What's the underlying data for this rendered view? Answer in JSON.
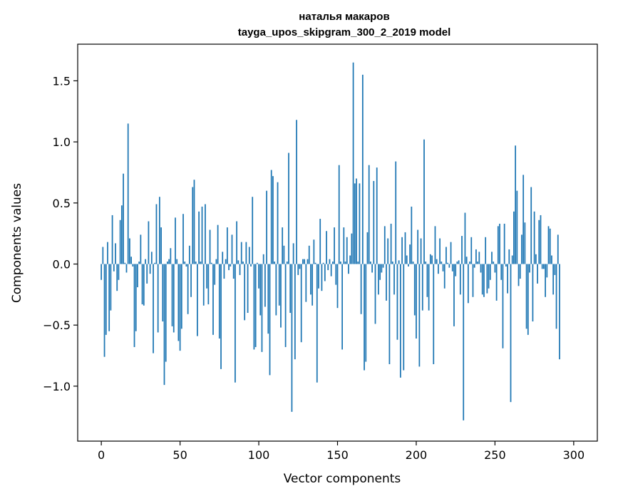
{
  "chart_data": {
    "type": "bar",
    "title": "наталья макаров",
    "subtitle": "tayga_upos_skipgram_300_2_2019 model",
    "xlabel": "Vector components",
    "ylabel": "Components values",
    "xlim": [
      -15,
      315
    ],
    "ylim": [
      -1.45,
      1.8
    ],
    "xticks": [
      0,
      50,
      100,
      150,
      200,
      250,
      300
    ],
    "xtick_labels": [
      "0",
      "50",
      "100",
      "150",
      "200",
      "250",
      "300"
    ],
    "yticks": [
      -1.0,
      -0.5,
      0.0,
      0.5,
      1.0,
      1.5
    ],
    "ytick_labels": [
      "−1.0",
      "−0.5",
      "0.0",
      "0.5",
      "1.0",
      "1.5"
    ],
    "grid": false,
    "legend": "none",
    "bar_color": "#1f77b4",
    "values": [
      -0.13,
      0.14,
      -0.76,
      -0.58,
      0.18,
      -0.55,
      -0.38,
      0.4,
      -0.06,
      0.17,
      -0.22,
      -0.13,
      0.36,
      0.48,
      0.74,
      0.01,
      -0.07,
      1.15,
      0.21,
      0.06,
      -0.02,
      -0.68,
      -0.55,
      -0.19,
      0.02,
      0.24,
      -0.33,
      -0.34,
      0.04,
      -0.16,
      0.35,
      -0.08,
      0.1,
      -0.73,
      0.01,
      0.49,
      -0.56,
      0.55,
      0.3,
      -0.47,
      -0.99,
      -0.8,
      0.02,
      0.04,
      0.13,
      -0.51,
      -0.56,
      0.38,
      0.04,
      -0.63,
      -0.71,
      -0.53,
      0.41,
      0.02,
      -0.02,
      -0.41,
      0.15,
      -0.27,
      0.63,
      0.69,
      0.02,
      -0.59,
      0.43,
      0.02,
      0.47,
      -0.34,
      0.49,
      -0.2,
      -0.33,
      0.28,
      0.01,
      -0.58,
      -0.17,
      0.04,
      0.32,
      -0.61,
      -0.86,
      0.1,
      -0.12,
      0.04,
      0.3,
      -0.05,
      -0.02,
      0.24,
      -0.12,
      -0.97,
      0.35,
      0.03,
      -0.09,
      0.18,
      0.02,
      -0.46,
      0.18,
      -0.4,
      0.14,
      -0.02,
      0.55,
      -0.7,
      -0.68,
      0.01,
      -0.2,
      -0.42,
      -0.72,
      0.08,
      -0.35,
      0.6,
      -0.57,
      -0.91,
      0.77,
      0.72,
      0.02,
      -0.42,
      0.67,
      -0.34,
      -0.52,
      0.3,
      0.15,
      -0.68,
      0.02,
      0.91,
      -0.4,
      -1.21,
      0.17,
      -0.78,
      1.18,
      -0.09,
      -0.04,
      -0.64,
      0.04,
      0.04,
      -0.31,
      0.04,
      0.15,
      -0.25,
      -0.34,
      0.2,
      0.01,
      -0.97,
      -0.2,
      0.37,
      -0.22,
      0.01,
      -0.14,
      0.27,
      -0.05,
      0.04,
      -0.1,
      0.02,
      0.3,
      -0.17,
      -0.36,
      0.81,
      0.02,
      -0.7,
      0.3,
      0.02,
      0.22,
      -0.08,
      0.07,
      0.25,
      1.65,
      0.66,
      0.7,
      0.02,
      0.66,
      -0.41,
      1.55,
      -0.87,
      -0.8,
      0.26,
      0.81,
      0.02,
      -0.07,
      0.68,
      -0.49,
      0.79,
      -0.25,
      -0.13,
      -0.07,
      -0.03,
      0.31,
      -0.3,
      0.21,
      -0.82,
      0.33,
      0.02,
      -0.25,
      0.84,
      -0.62,
      0.03,
      -0.93,
      0.22,
      -0.87,
      0.26,
      0.07,
      -0.02,
      0.16,
      0.47,
      0.02,
      -0.42,
      -0.61,
      0.28,
      -0.84,
      0.21,
      -0.38,
      1.02,
      0.02,
      -0.27,
      -0.38,
      0.08,
      0.07,
      -0.82,
      0.31,
      0.04,
      -0.08,
      0.21,
      0.02,
      -0.06,
      -0.2,
      0.14,
      0.01,
      -0.03,
      0.18,
      -0.06,
      -0.51,
      -0.1,
      0.02,
      0.03,
      -0.25,
      0.23,
      -1.28,
      0.42,
      0.06,
      -0.32,
      0.02,
      0.22,
      -0.27,
      -0.03,
      0.12,
      0.02,
      0.1,
      -0.07,
      -0.25,
      -0.27,
      0.22,
      -0.24,
      -0.2,
      -0.13,
      0.1,
      0.02,
      -0.07,
      -0.3,
      0.31,
      0.33,
      -0.13,
      -0.69,
      0.33,
      -0.02,
      -0.24,
      0.12,
      -1.13,
      0.07,
      0.43,
      0.97,
      0.6,
      -0.18,
      -0.12,
      0.24,
      0.73,
      0.34,
      -0.53,
      -0.58,
      -0.07,
      0.63,
      -0.47,
      0.43,
      0.08,
      -0.16,
      0.36,
      0.4,
      -0.04,
      -0.04,
      -0.27,
      -0.11,
      0.31,
      0.29,
      0.07,
      -0.25,
      -0.09,
      -0.53,
      0.24,
      -0.78
    ]
  }
}
